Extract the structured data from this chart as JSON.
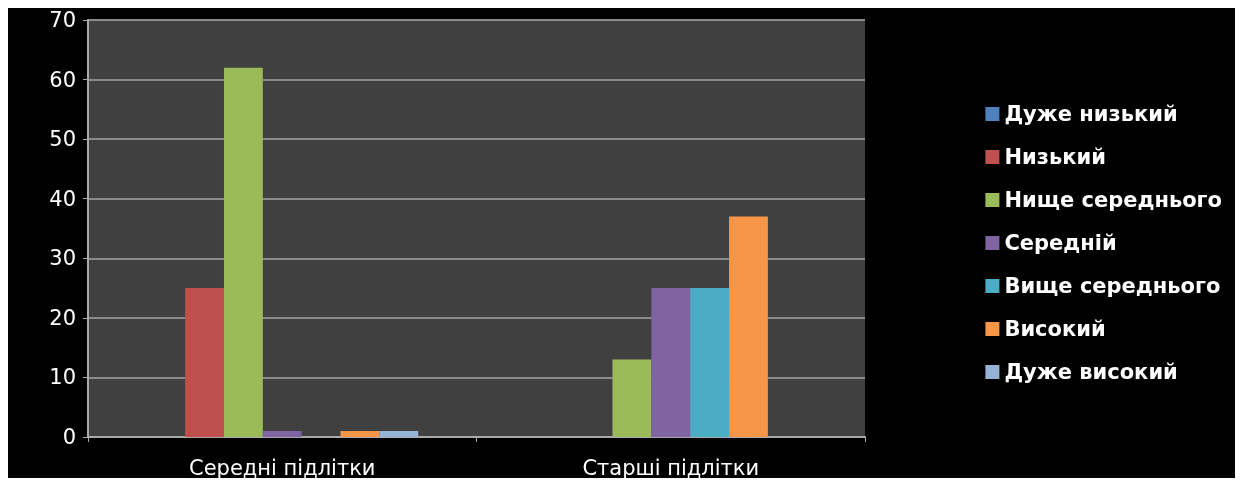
{
  "chart_data": {
    "type": "bar",
    "categories": [
      "Середні підлітки",
      "Старші підлітки"
    ],
    "series": [
      {
        "name": "Дуже низький",
        "color": "#4f81bd",
        "values": [
          null,
          null
        ]
      },
      {
        "name": "Низький",
        "color": "#c0504d",
        "values": [
          25,
          null
        ]
      },
      {
        "name": "Нище середнього",
        "color": "#9bbb59",
        "values": [
          62,
          13
        ]
      },
      {
        "name": "Середній",
        "color": "#8064a2",
        "values": [
          1,
          25
        ]
      },
      {
        "name": "Вище середнього",
        "color": "#4bacc6",
        "values": [
          null,
          25
        ]
      },
      {
        "name": "Високий",
        "color": "#f79646",
        "values": [
          1,
          37
        ]
      },
      {
        "name": "Дуже високий",
        "color": "#95b3d7",
        "values": [
          1,
          null
        ]
      }
    ],
    "ylim": [
      0,
      70
    ],
    "yticks": [
      0,
      10,
      20,
      30,
      40,
      50,
      60,
      70
    ],
    "grid": "y",
    "legend": "right"
  }
}
